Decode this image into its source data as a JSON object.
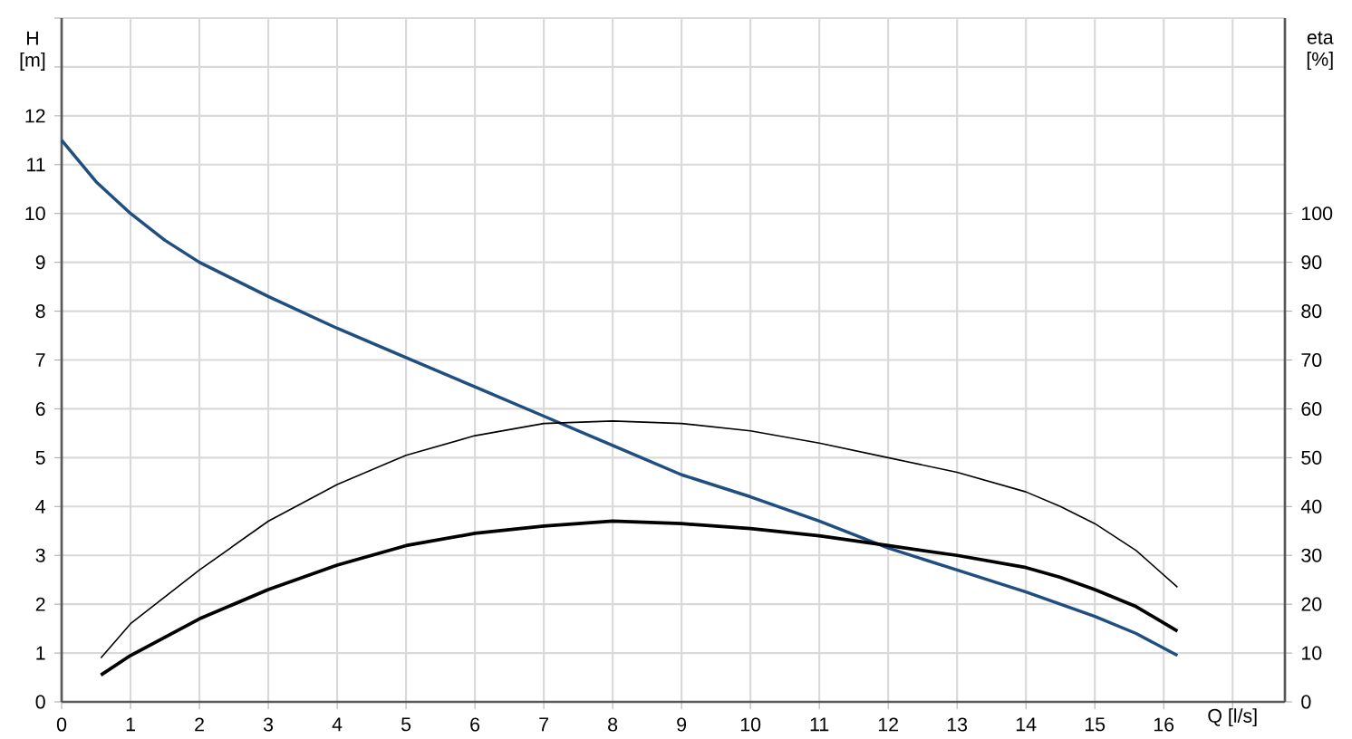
{
  "chart_data": {
    "type": "line",
    "xlabel": "Q [l/s]",
    "ylabel": "H [m]",
    "y2label": "eta [%]",
    "xlim": [
      0,
      17.76
    ],
    "ylim": [
      0,
      14
    ],
    "y2lim": [
      0,
      140
    ],
    "xticks": [
      0,
      1,
      2,
      3,
      4,
      5,
      6,
      7,
      8,
      9,
      10,
      11,
      12,
      13,
      14,
      15,
      16,
      {
        "value": 17,
        "label": null
      }
    ],
    "yticks": [
      0,
      1,
      2,
      3,
      4,
      5,
      6,
      7,
      8,
      9,
      10,
      11,
      12,
      {
        "value": 13,
        "label": null
      },
      {
        "value": 14,
        "label": null
      }
    ],
    "y2ticks": [
      0,
      10,
      20,
      30,
      40,
      50,
      60,
      70,
      80,
      90,
      100
    ],
    "grid": true,
    "marker": "none",
    "line_style": "solid",
    "series": [
      {
        "color": "#1f4e80",
        "x": [
          0,
          0.5,
          1,
          1.5,
          2,
          3,
          4,
          5,
          6,
          7,
          8,
          9,
          10,
          11,
          12,
          13,
          14,
          15,
          15.6,
          16.2
        ],
        "values": [
          11.5,
          10.65,
          10.0,
          9.45,
          9.0,
          8.3,
          7.65,
          7.05,
          6.45,
          5.85,
          5.25,
          4.65,
          4.2,
          3.7,
          3.15,
          2.7,
          2.25,
          1.75,
          1.4,
          0.95
        ]
      },
      {
        "color": "#000000",
        "axis": "y2",
        "x": [
          0.57,
          1,
          2,
          3,
          4,
          5,
          6,
          7,
          8,
          9,
          10,
          11,
          12,
          13,
          14,
          14.5,
          15,
          15.6,
          16.2
        ],
        "values": [
          9,
          16,
          27,
          37,
          44.5,
          50.5,
          54.5,
          57,
          57.5,
          57,
          55.5,
          53,
          50,
          47,
          43,
          40,
          36.5,
          31,
          23.5
        ]
      },
      {
        "color": "#000000",
        "axis": "y2",
        "x": [
          0.57,
          1,
          2,
          3,
          4,
          5,
          6,
          7,
          8,
          9,
          10,
          11,
          12,
          13,
          14,
          14.5,
          15,
          15.6,
          16.2
        ],
        "values": [
          5.5,
          9.5,
          17,
          23,
          28,
          32,
          34.5,
          36,
          37,
          36.5,
          35.5,
          34,
          32,
          30,
          27.5,
          25.5,
          23,
          19.5,
          14.5
        ]
      }
    ]
  }
}
